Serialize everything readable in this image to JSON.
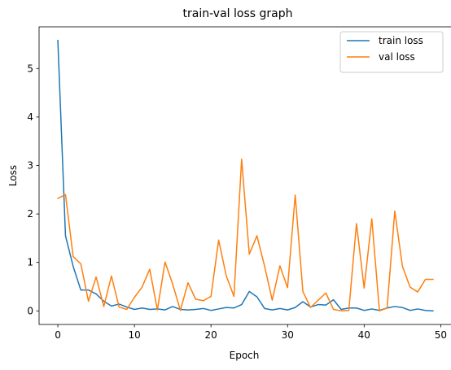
{
  "chart_data": {
    "type": "line",
    "title": "train-val loss graph",
    "xlabel": "Epoch",
    "ylabel": "Loss",
    "xlim": [
      -2.45,
      51.45
    ],
    "ylim": [
      -0.28,
      5.86
    ],
    "xticks": [
      0,
      10,
      20,
      30,
      40,
      50
    ],
    "yticks": [
      0,
      1,
      2,
      3,
      4,
      5
    ],
    "legend_position": "top-right",
    "x": [
      0,
      1,
      2,
      3,
      4,
      5,
      6,
      7,
      8,
      9,
      10,
      11,
      12,
      13,
      14,
      15,
      16,
      17,
      18,
      19,
      20,
      21,
      22,
      23,
      24,
      25,
      26,
      27,
      28,
      29,
      30,
      31,
      32,
      33,
      34,
      35,
      36,
      37,
      38,
      39,
      40,
      41,
      42,
      43,
      44,
      45,
      46,
      47,
      48,
      49
    ],
    "series": [
      {
        "name": "train loss",
        "color": "#1f77b4",
        "values": [
          5.58,
          1.55,
          0.92,
          0.43,
          0.43,
          0.35,
          0.2,
          0.1,
          0.14,
          0.08,
          0.03,
          0.06,
          0.03,
          0.04,
          0.02,
          0.09,
          0.03,
          0.02,
          0.03,
          0.05,
          0.01,
          0.04,
          0.07,
          0.06,
          0.13,
          0.4,
          0.29,
          0.05,
          0.02,
          0.05,
          0.02,
          0.07,
          0.19,
          0.08,
          0.13,
          0.12,
          0.23,
          0.03,
          0.06,
          0.06,
          0.01,
          0.04,
          0.01,
          0.06,
          0.09,
          0.07,
          0.01,
          0.04,
          0.01,
          0.0
        ]
      },
      {
        "name": "val loss",
        "color": "#ff7f0e",
        "values": [
          2.32,
          2.4,
          1.12,
          0.97,
          0.2,
          0.7,
          0.09,
          0.72,
          0.08,
          0.03,
          0.28,
          0.49,
          0.86,
          0.02,
          1.01,
          0.55,
          0.01,
          0.58,
          0.24,
          0.21,
          0.3,
          1.46,
          0.72,
          0.3,
          3.13,
          1.17,
          1.55,
          0.92,
          0.22,
          0.93,
          0.48,
          2.39,
          0.4,
          0.07,
          0.22,
          0.37,
          0.03,
          0.0,
          0.01,
          1.8,
          0.47,
          1.9,
          0.0,
          0.06,
          2.06,
          0.92,
          0.49,
          0.39,
          0.65,
          0.65
        ]
      }
    ]
  }
}
